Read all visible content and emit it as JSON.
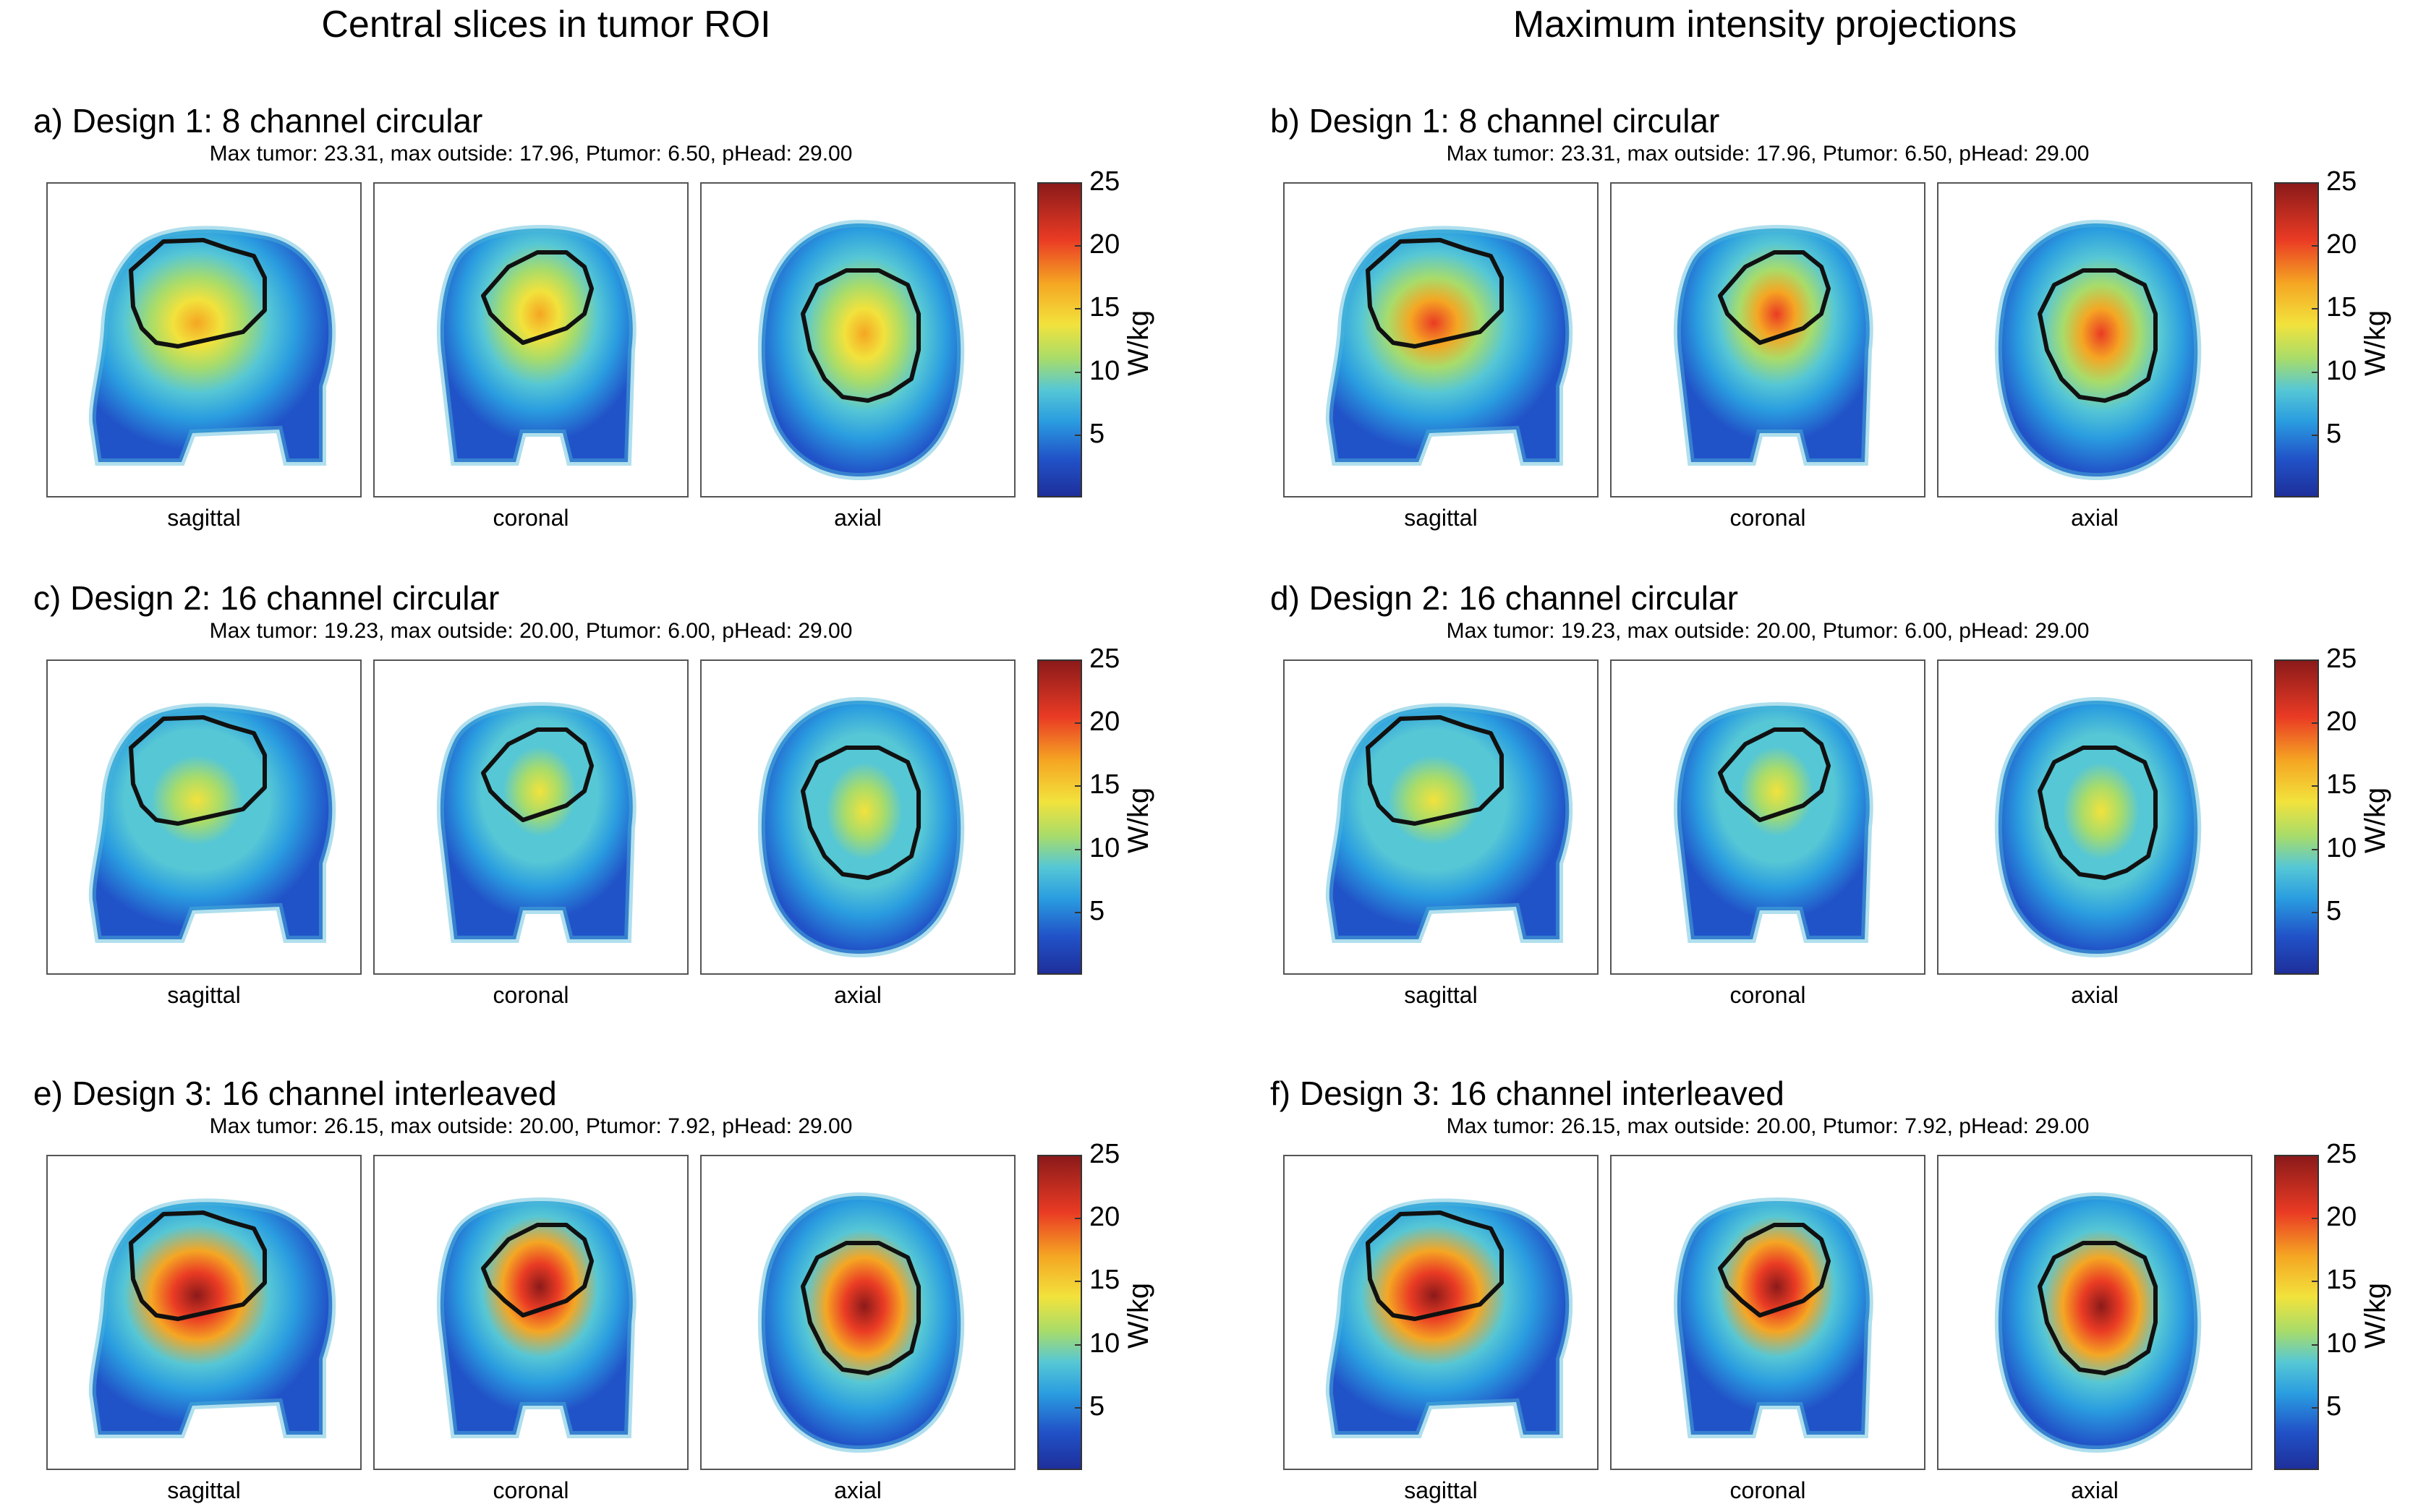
{
  "column_headers": {
    "left": "Central slices in tumor ROI",
    "right": "Maximum intensity projections"
  },
  "panels": [
    {
      "title": "a) Design 1: 8 channel circular",
      "stats": "Max tumor: 23.31, max outside: 17.96, Ptumor: 6.50, pHead: 29.00",
      "peak_level": 0.72
    },
    {
      "title": "b) Design 1: 8 channel circular",
      "stats": "Max tumor: 23.31, max outside: 17.96, Ptumor: 6.50, pHead: 29.00",
      "peak_level": 0.8
    },
    {
      "title": "c) Design 2: 16 channel circular",
      "stats": "Max tumor: 19.23, max outside: 20.00, Ptumor: 6.00, pHead: 29.00",
      "peak_level": 0.62
    },
    {
      "title": "d) Design 2: 16 channel circular",
      "stats": "Max tumor: 19.23, max outside: 20.00, Ptumor: 6.00, pHead: 29.00",
      "peak_level": 0.66
    },
    {
      "title": "e) Design 3: 16 channel interleaved",
      "stats": "Max tumor: 26.15, max outside: 20.00, Ptumor: 7.92, pHead: 29.00",
      "peak_level": 0.95
    },
    {
      "title": "f) Design 3: 16 channel interleaved",
      "stats": "Max tumor: 26.15, max outside: 20.00, Ptumor: 7.92, pHead: 29.00",
      "peak_level": 0.95
    }
  ],
  "view_labels": [
    "sagittal",
    "coronal",
    "axial"
  ],
  "colorbar": {
    "ticks": [
      "25",
      "20",
      "15",
      "10",
      "5"
    ],
    "tick_values": [
      25,
      20,
      15,
      10,
      5
    ],
    "range": [
      0,
      25
    ],
    "unit": "W/kg",
    "colormap": "jet"
  },
  "colors": {
    "background_low": "#1e2f9b",
    "contour": "#111111",
    "panel_border": "#555555"
  }
}
